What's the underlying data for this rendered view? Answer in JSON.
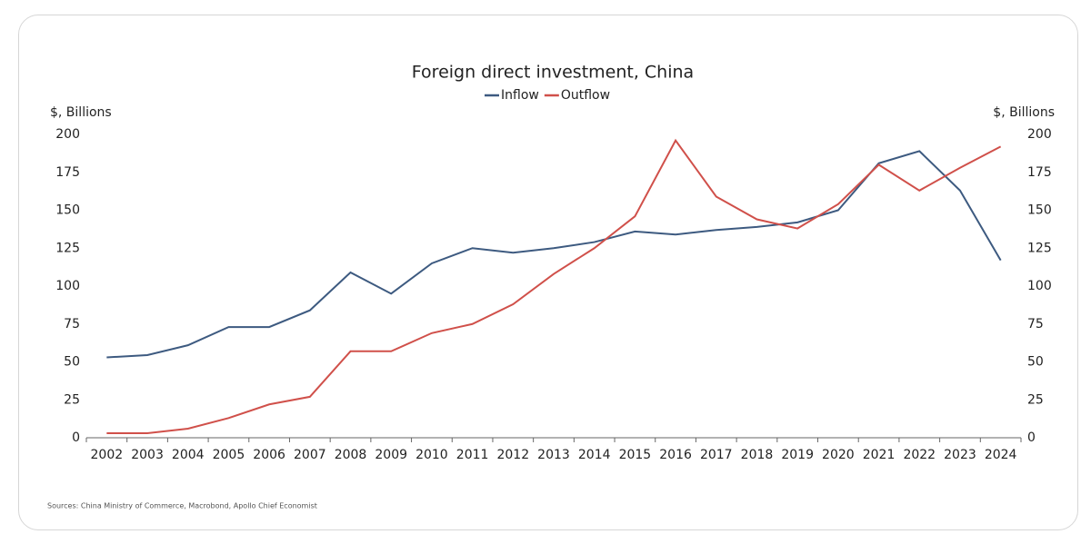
{
  "chart_data": {
    "type": "line",
    "title": "Foreign direct investment, China",
    "y_label": "$, Billions",
    "y2_label": "$, Billions",
    "source": "Sources: China Ministry of Commerce, Macrobond, Apollo Chief Economist",
    "categories": [
      "2002",
      "2003",
      "2004",
      "2005",
      "2006",
      "2007",
      "2008",
      "2009",
      "2010",
      "2011",
      "2012",
      "2013",
      "2014",
      "2015",
      "2016",
      "2017",
      "2018",
      "2019",
      "2020",
      "2021",
      "2022",
      "2023",
      "2024"
    ],
    "series": [
      {
        "name": "Inflow",
        "color": "#3d5a80",
        "values": [
          53,
          54.5,
          61,
          73,
          73,
          84,
          109,
          95,
          115,
          125,
          122,
          125,
          129,
          136,
          134,
          137,
          139,
          142,
          150,
          181,
          189,
          163,
          117
        ]
      },
      {
        "name": "Outflow",
        "color": "#d0504a",
        "values": [
          3,
          3,
          6,
          13,
          22,
          27,
          57,
          57,
          69,
          75,
          88,
          108,
          125,
          146,
          196,
          159,
          144,
          138,
          154,
          180,
          163,
          178,
          192
        ]
      }
    ],
    "ylim": [
      0,
      200
    ],
    "yticks": [
      0,
      25,
      50,
      75,
      100,
      125,
      150,
      175,
      200
    ],
    "y2lim": [
      0,
      200
    ],
    "y2ticks": [
      0,
      25,
      50,
      75,
      100,
      125,
      150,
      175,
      200
    ]
  }
}
